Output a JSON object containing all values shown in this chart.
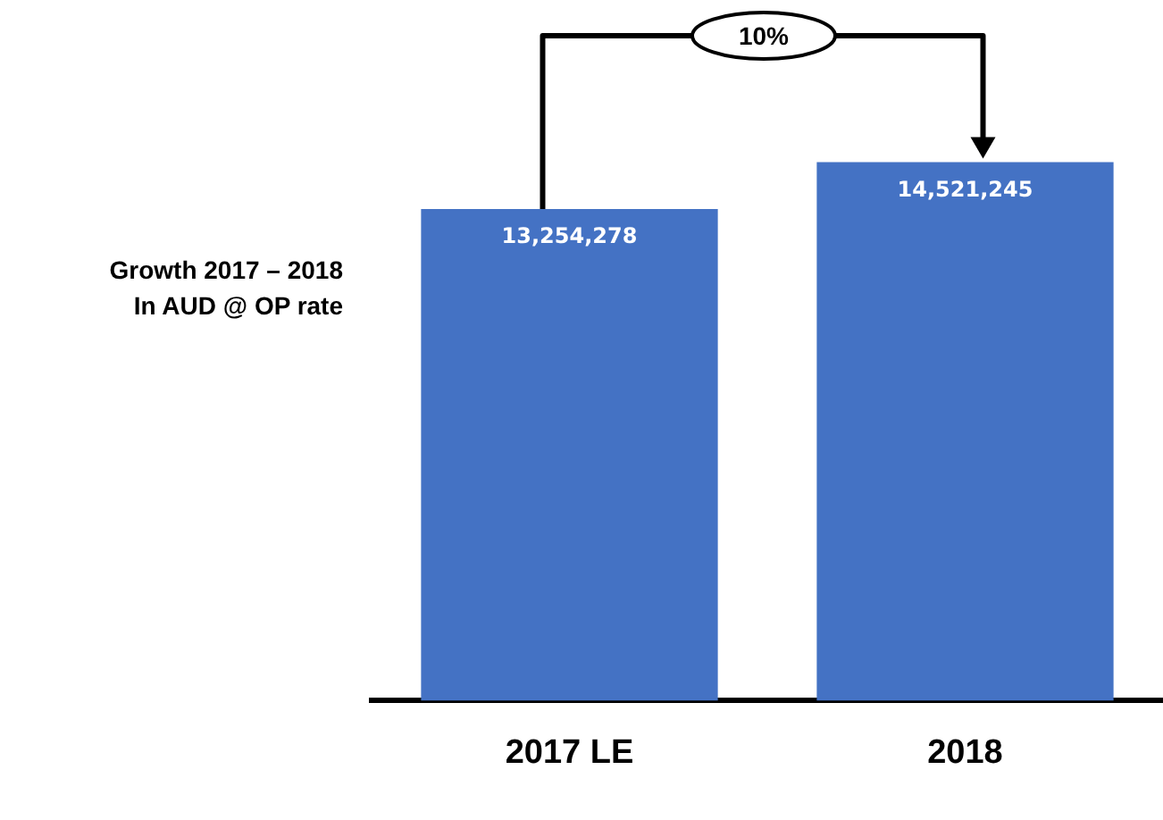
{
  "chart_data": {
    "type": "bar",
    "ylabel": "Growth 2017 – 2018\nIn AUD @ OP rate",
    "categories": [
      "2017 LE",
      "2018"
    ],
    "values": [
      13254278,
      14521245
    ],
    "value_labels": [
      "13,254,278",
      "14,521,245"
    ],
    "color": "#4472c4",
    "annotations": [
      "10%"
    ]
  }
}
